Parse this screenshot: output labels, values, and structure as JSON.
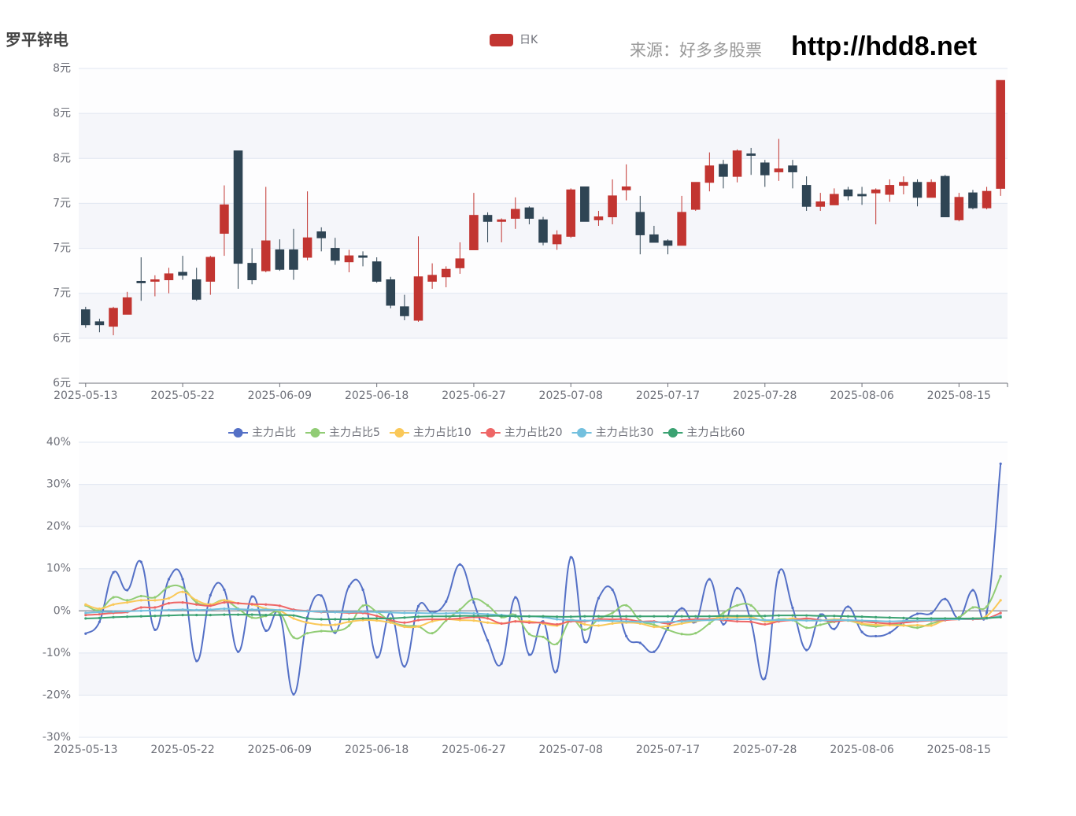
{
  "chart_data": [
    {
      "type": "candlestick",
      "title": "罗平锌电",
      "source_note": "来源：好多多股票",
      "watermark": "http://hdd8.net",
      "categories": [
        "2025-05-13",
        null,
        null,
        null,
        null,
        null,
        null,
        "2025-05-22",
        null,
        null,
        null,
        null,
        null,
        null,
        "2025-06-09",
        null,
        null,
        null,
        null,
        null,
        null,
        "2025-06-18",
        null,
        null,
        null,
        null,
        null,
        null,
        "2025-06-27",
        null,
        null,
        null,
        null,
        null,
        null,
        "2025-07-08",
        null,
        null,
        null,
        null,
        null,
        null,
        "2025-07-17",
        null,
        null,
        null,
        null,
        null,
        null,
        "2025-07-28",
        null,
        null,
        null,
        null,
        null,
        null,
        "2025-08-06",
        null,
        null,
        null,
        null,
        null,
        null,
        "2025-08-15",
        null,
        null,
        null
      ],
      "series": [
        {
          "name": "日K",
          "color": "#c23531",
          "down_color": "#2f4554",
          "values": [
            [
              6.49,
              6.39,
              6.37,
              6.51
            ],
            [
              6.41,
              6.39,
              6.34,
              6.43
            ],
            [
              6.38,
              6.5,
              6.32,
              6.51
            ],
            [
              6.46,
              6.57,
              6.46,
              6.61
            ],
            [
              6.68,
              6.67,
              6.55,
              6.84
            ],
            [
              6.68,
              6.69,
              6.58,
              6.72
            ],
            [
              6.69,
              6.73,
              6.6,
              6.77
            ],
            [
              6.74,
              6.72,
              6.69,
              6.85
            ],
            [
              6.69,
              6.56,
              6.55,
              6.77
            ],
            [
              6.68,
              6.84,
              6.59,
              6.85
            ],
            [
              7.0,
              7.19,
              6.85,
              7.32
            ],
            [
              7.55,
              6.8,
              6.63,
              7.55
            ],
            [
              6.8,
              6.69,
              6.66,
              6.9
            ],
            [
              6.75,
              6.95,
              6.74,
              7.31
            ],
            [
              6.89,
              6.76,
              6.75,
              6.96
            ],
            [
              6.89,
              6.76,
              6.69,
              7.03
            ],
            [
              6.84,
              6.97,
              6.82,
              7.28
            ],
            [
              7.01,
              6.97,
              6.88,
              7.04
            ],
            [
              6.9,
              6.82,
              6.79,
              6.97
            ],
            [
              6.81,
              6.85,
              6.74,
              6.89
            ],
            [
              6.85,
              6.84,
              6.78,
              6.88
            ],
            [
              6.81,
              6.68,
              6.67,
              6.84
            ],
            [
              6.69,
              6.52,
              6.5,
              6.71
            ],
            [
              6.51,
              6.45,
              6.42,
              6.59
            ],
            [
              6.42,
              6.71,
              6.41,
              6.98
            ],
            [
              6.68,
              6.72,
              6.63,
              6.8
            ],
            [
              6.71,
              6.76,
              6.64,
              6.78
            ],
            [
              6.77,
              6.83,
              6.73,
              6.94
            ],
            [
              6.89,
              7.12,
              6.89,
              7.27
            ],
            [
              7.12,
              7.08,
              6.94,
              7.14
            ],
            [
              7.08,
              7.09,
              6.94,
              7.1
            ],
            [
              7.1,
              7.16,
              7.03,
              7.24
            ],
            [
              7.17,
              7.1,
              7.06,
              7.18
            ],
            [
              7.09,
              6.94,
              6.92,
              7.11
            ],
            [
              6.93,
              6.99,
              6.89,
              7.02
            ],
            [
              6.98,
              7.29,
              6.97,
              7.3
            ],
            [
              7.31,
              7.08,
              7.08,
              7.31
            ],
            [
              7.09,
              7.11,
              7.05,
              7.15
            ],
            [
              7.11,
              7.25,
              7.06,
              7.36
            ],
            [
              7.29,
              7.31,
              7.22,
              7.46
            ],
            [
              7.14,
              6.99,
              6.86,
              7.25
            ],
            [
              6.99,
              6.94,
              6.94,
              7.05
            ],
            [
              6.95,
              6.92,
              6.86,
              6.96
            ],
            [
              6.92,
              7.14,
              6.92,
              7.25
            ],
            [
              7.16,
              7.34,
              7.15,
              7.34
            ],
            [
              7.34,
              7.45,
              7.28,
              7.54
            ],
            [
              7.46,
              7.38,
              7.3,
              7.49
            ],
            [
              7.38,
              7.55,
              7.34,
              7.56
            ],
            [
              7.53,
              7.52,
              7.39,
              7.57
            ],
            [
              7.47,
              7.39,
              7.31,
              7.49
            ],
            [
              7.41,
              7.43,
              7.35,
              7.63
            ],
            [
              7.45,
              7.41,
              7.3,
              7.49
            ],
            [
              7.32,
              7.18,
              7.15,
              7.38
            ],
            [
              7.18,
              7.21,
              7.15,
              7.27
            ],
            [
              7.19,
              7.26,
              7.19,
              7.3
            ],
            [
              7.29,
              7.25,
              7.22,
              7.31
            ],
            [
              7.26,
              7.25,
              7.19,
              7.31
            ],
            [
              7.27,
              7.29,
              7.06,
              7.3
            ],
            [
              7.26,
              7.32,
              7.21,
              7.36
            ],
            [
              7.32,
              7.34,
              7.26,
              7.38
            ],
            [
              7.34,
              7.24,
              7.18,
              7.36
            ],
            [
              7.24,
              7.34,
              7.24,
              7.36
            ],
            [
              7.38,
              7.11,
              7.11,
              7.39
            ],
            [
              7.09,
              7.24,
              7.08,
              7.27
            ],
            [
              7.27,
              7.17,
              7.16,
              7.29
            ],
            [
              7.17,
              7.28,
              7.16,
              7.31
            ],
            [
              7.3,
              8.02,
              7.25,
              8.02
            ]
          ]
        }
      ],
      "ylim": [
        6.0,
        8.1
      ],
      "yticks": [
        {
          "value": 6.0,
          "label": "6元"
        },
        {
          "value": 6.3,
          "label": "6元"
        },
        {
          "value": 6.6,
          "label": "7元"
        },
        {
          "value": 6.9,
          "label": "7元"
        },
        {
          "value": 7.2,
          "label": "7元"
        },
        {
          "value": 7.5,
          "label": "8元"
        },
        {
          "value": 7.8,
          "label": "8元"
        },
        {
          "value": 8.1,
          "label": "8元"
        }
      ],
      "grid": true
    },
    {
      "type": "line",
      "smooth": true,
      "categories": [
        "2025-05-13",
        null,
        null,
        null,
        null,
        null,
        null,
        "2025-05-22",
        null,
        null,
        null,
        null,
        null,
        null,
        "2025-06-09",
        null,
        null,
        null,
        null,
        null,
        null,
        "2025-06-18",
        null,
        null,
        null,
        null,
        null,
        null,
        "2025-06-27",
        null,
        null,
        null,
        null,
        null,
        null,
        "2025-07-08",
        null,
        null,
        null,
        null,
        null,
        null,
        "2025-07-17",
        null,
        null,
        null,
        null,
        null,
        null,
        "2025-07-28",
        null,
        null,
        null,
        null,
        null,
        null,
        "2025-08-06",
        null,
        null,
        null,
        null,
        null,
        null,
        "2025-08-15",
        null,
        null,
        null
      ],
      "series": [
        {
          "name": "主力占比",
          "color": "#5470c6",
          "values": [
            -5.4,
            -2.6,
            9.1,
            4.9,
            11.6,
            -4.5,
            7.5,
            7.5,
            -11.9,
            3.7,
            5.0,
            -9.7,
            3.4,
            -4.7,
            -0.8,
            -19.8,
            -1.5,
            3.6,
            -5.2,
            5.8,
            5.0,
            -11.0,
            -0.5,
            -13.2,
            1.1,
            -0.4,
            2.2,
            11.0,
            2.0,
            -7.0,
            -12.5,
            3.2,
            -10.4,
            -2.5,
            -14.2,
            12.7,
            -7.3,
            3.0,
            5.0,
            -6.0,
            -7.6,
            -9.7,
            -4.0,
            0.6,
            -2.6,
            7.5,
            -3.2,
            5.4,
            -2.6,
            -16.0,
            9.1,
            0.7,
            -9.3,
            -0.9,
            -4.3,
            1.0,
            -5.0,
            -6.0,
            -5.2,
            -2.6,
            -0.7,
            -0.6,
            2.8,
            -1.7,
            4.9,
            -0.4,
            34.9
          ]
        },
        {
          "name": "主力占比5",
          "color": "#91cc75",
          "values": [
            1.3,
            0.2,
            3.2,
            2.5,
            3.5,
            3.2,
            5.7,
            5.5,
            2.0,
            1.5,
            2.5,
            0.5,
            -1.6,
            -1.2,
            -0.5,
            -6.3,
            -5.3,
            -4.8,
            -4.8,
            -3.5,
            1.2,
            -0.2,
            -2.5,
            -3.5,
            -3.7,
            -5.3,
            -2.3,
            0.3,
            2.8,
            1.3,
            -1.5,
            -1.0,
            -5.5,
            -6.2,
            -7.8,
            -2.2,
            -4.5,
            -2.0,
            -0.5,
            1.3,
            -2.3,
            -3.3,
            -4.5,
            -5.5,
            -5.3,
            -3.0,
            -0.5,
            1.3,
            1.3,
            -2.2,
            -2.0,
            -2.2,
            -4.0,
            -3.3,
            -2.6,
            -2.3,
            -3.2,
            -3.7,
            -3.3,
            -3.4,
            -4.0,
            -3.0,
            -2.2,
            -1.5,
            0.8,
            1.0,
            8.2
          ]
        },
        {
          "name": "主力占比10",
          "color": "#fac858",
          "values": [
            1.5,
            0.5,
            1.5,
            2.0,
            2.5,
            2.5,
            3.0,
            4.5,
            2.5,
            1.5,
            2.5,
            1.8,
            1.5,
            0.5,
            0.0,
            -1.8,
            -2.8,
            -3.3,
            -3.3,
            -2.6,
            -2.2,
            -2.3,
            -2.8,
            -3.8,
            -3.7,
            -2.5,
            -2.0,
            -2.2,
            -2.3,
            -2.8,
            -3.0,
            -2.5,
            -2.5,
            -3.0,
            -3.5,
            -2.3,
            -3.2,
            -3.5,
            -3.0,
            -2.8,
            -3.0,
            -3.8,
            -3.6,
            -3.0,
            -2.5,
            -2.0,
            -1.5,
            -1.5,
            -1.5,
            -2.5,
            -2.5,
            -1.8,
            -2.2,
            -2.3,
            -2.0,
            -2.2,
            -3.0,
            -3.3,
            -3.4,
            -3.5,
            -3.4,
            -3.5,
            -2.2,
            -2.0,
            -1.8,
            -1.2,
            2.5
          ]
        },
        {
          "name": "主力占比20",
          "color": "#ee6666",
          "values": [
            -1.0,
            -0.8,
            -0.5,
            -0.3,
            0.8,
            0.8,
            1.8,
            2.0,
            1.5,
            1.2,
            2.0,
            1.8,
            1.6,
            1.5,
            1.2,
            0.3,
            0.0,
            -0.3,
            -0.3,
            -0.5,
            -0.5,
            -1.2,
            -2.2,
            -2.8,
            -2.2,
            -2.0,
            -2.0,
            -1.8,
            -1.5,
            -1.8,
            -3.0,
            -2.5,
            -2.8,
            -2.8,
            -3.2,
            -2.5,
            -2.5,
            -2.0,
            -2.0,
            -2.0,
            -2.5,
            -2.5,
            -3.0,
            -2.2,
            -2.0,
            -2.0,
            -2.2,
            -2.5,
            -2.6,
            -3.2,
            -2.5,
            -2.2,
            -1.8,
            -2.2,
            -2.5,
            -2.2,
            -2.5,
            -2.8,
            -3.0,
            -2.8,
            -2.5,
            -2.3,
            -2.2,
            -2.0,
            -2.0,
            -1.8,
            -0.5
          ]
        },
        {
          "name": "主力占比30",
          "color": "#73c0de",
          "values": [
            -0.5,
            -0.3,
            -0.2,
            -0.1,
            0.0,
            0.1,
            0.2,
            0.3,
            0.2,
            0.3,
            0.5,
            0.4,
            0.3,
            0.3,
            0.2,
            0.0,
            -0.1,
            -0.2,
            -0.3,
            -0.3,
            -0.2,
            -0.3,
            -0.4,
            -0.5,
            -0.5,
            -0.6,
            -0.6,
            -0.5,
            -0.6,
            -0.8,
            -1.0,
            -1.2,
            -1.3,
            -1.5,
            -2.0,
            -2.2,
            -2.3,
            -2.3,
            -2.4,
            -2.5,
            -2.6,
            -2.7,
            -2.6,
            -2.5,
            -2.3,
            -2.2,
            -2.0,
            -2.0,
            -2.0,
            -2.2,
            -2.2,
            -2.2,
            -2.3,
            -2.3,
            -2.2,
            -2.2,
            -2.3,
            -2.4,
            -2.5,
            -2.4,
            -2.3,
            -2.2,
            -2.0,
            -2.0,
            -1.9,
            -1.8,
            -1.2
          ]
        },
        {
          "name": "主力占比60",
          "color": "#3ba272",
          "values": [
            -1.8,
            -1.7,
            -1.5,
            -1.4,
            -1.3,
            -1.2,
            -1.1,
            -1.0,
            -1.0,
            -1.0,
            -0.9,
            -0.9,
            -0.9,
            -1.0,
            -1.0,
            -1.1,
            -1.8,
            -2.0,
            -2.0,
            -2.0,
            -1.8,
            -1.8,
            -1.8,
            -1.6,
            -1.4,
            -1.3,
            -1.3,
            -1.2,
            -1.2,
            -1.2,
            -1.2,
            -1.3,
            -1.3,
            -1.3,
            -1.4,
            -1.4,
            -1.3,
            -1.3,
            -1.3,
            -1.3,
            -1.3,
            -1.3,
            -1.3,
            -1.3,
            -1.3,
            -1.3,
            -1.2,
            -1.2,
            -1.2,
            -1.2,
            -1.1,
            -1.1,
            -1.1,
            -1.2,
            -1.2,
            -1.3,
            -1.4,
            -1.5,
            -1.6,
            -1.7,
            -1.8,
            -1.8,
            -1.8,
            -1.8,
            -1.8,
            -1.7,
            -1.5
          ]
        }
      ],
      "ylim": [
        -30,
        40
      ],
      "yticks": [
        {
          "value": -30,
          "label": "-30%"
        },
        {
          "value": -20,
          "label": "-20%"
        },
        {
          "value": -10,
          "label": "-10%"
        },
        {
          "value": 0,
          "label": "0%"
        },
        {
          "value": 10,
          "label": "10%"
        },
        {
          "value": 20,
          "label": "20%"
        },
        {
          "value": 30,
          "label": "30%"
        },
        {
          "value": 40,
          "label": "40%"
        }
      ],
      "grid": true
    }
  ]
}
